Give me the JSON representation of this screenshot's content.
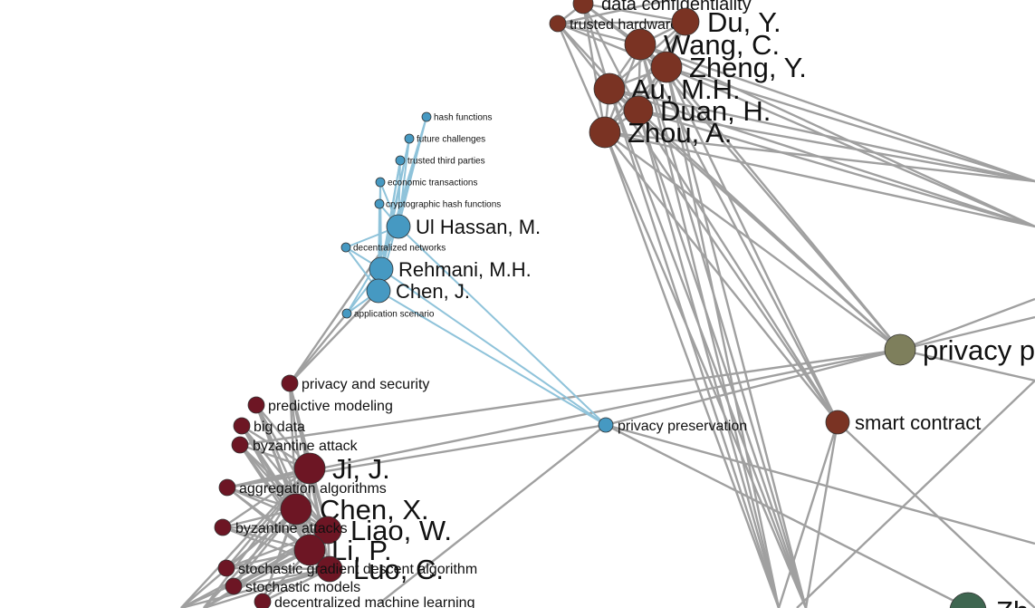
{
  "colors": {
    "cluster_blue": "#4699c2",
    "cluster_brown": "#7a3323",
    "cluster_maroon": "#6d1624",
    "cluster_olive": "#7e7f5c",
    "cluster_green": "#3e6650",
    "edge_gray": "#a0a0a0",
    "edge_blue": "#8fc3da"
  },
  "nodes": {
    "data_confidentiality": "data confidentiality",
    "trusted_hardwares": "trusted hardwares",
    "du_y": "Du, Y.",
    "wang_c": "Wang, C.",
    "zheng_y": "Zheng, Y.",
    "au_mh": "Au, M.H.",
    "duan_h": "Duan, H.",
    "zhou_a": "Zhou, A.",
    "hash_functions": "hash functions",
    "future_challenges": "future challenges",
    "trusted_third_parties": "trusted third parties",
    "economic_transactions": "economic transactions",
    "cryptographic_hash_functions": "cryptographic hash functions",
    "ul_hassan_m": "Ul Hassan, M.",
    "decentralized_networks": "decentralized networks",
    "rehmani_mh": "Rehmani, M.H.",
    "chen_j": "Chen, J.",
    "application_scenario": "application scenario",
    "privacy_p": "privacy p",
    "smart_contract": "smart contract",
    "privacy_and_security": "privacy and security",
    "privacy_preservation": "privacy preservation",
    "predictive_modeling": "predictive modeling",
    "big_data": "big data",
    "byzantine_attack": "byzantine attack",
    "ji_j": "Ji, J.",
    "aggregation_algorithms": "aggregation algorithms",
    "chen_x": "Chen, X.",
    "liao_w": "Liao, W.",
    "byzantine_attacks": "byzantine attacks",
    "li_p": "Li, P.",
    "luo_c": "Luo, C.",
    "stochastic_gradient_descent_algorithm": "stochastic gradient descent algorithm",
    "stochastic_models": "stochastic models",
    "decentralized_machine_learning": "decentralized machine learning",
    "zh": "Zh"
  }
}
